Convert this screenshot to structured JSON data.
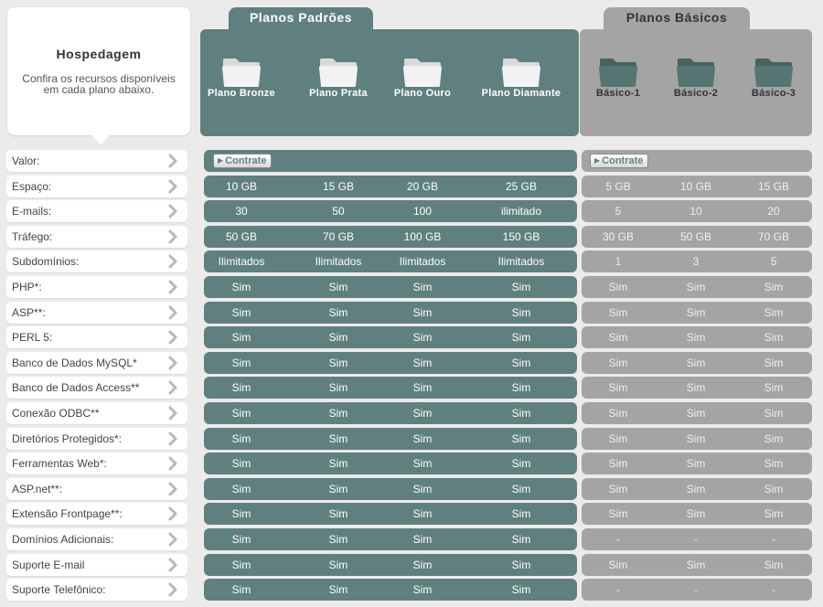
{
  "header": {
    "title": "Hospedagem",
    "description": "Confira os recursos disponíveis em cada plano abaixo."
  },
  "groups": {
    "padroes": "Planos Padrões",
    "basicos": "Planos Básicos"
  },
  "plans": {
    "padroes": [
      "Plano Bronze",
      "Plano Prata",
      "Plano Ouro",
      "Plano Diamante"
    ],
    "basicos": [
      "Básico-1",
      "Básico-2",
      "Básico-3"
    ]
  },
  "colors": {
    "padroes": "#5f807e",
    "basicos": "#a4a4a4",
    "background": "#ebebeb"
  },
  "contrate_label": "Contrate",
  "rows": [
    {
      "label": "Valor:",
      "padroes": null,
      "basicos": null
    },
    {
      "label": "Espaço:",
      "padroes": [
        "10 GB",
        "15 GB",
        "20 GB",
        "25 GB"
      ],
      "basicos": [
        "5 GB",
        "10 GB",
        "15 GB"
      ]
    },
    {
      "label": "E-mails:",
      "padroes": [
        "30",
        "50",
        "100",
        "ilimitado"
      ],
      "basicos": [
        "5",
        "10",
        "20"
      ]
    },
    {
      "label": "Tráfego:",
      "padroes": [
        "50 GB",
        "70 GB",
        "100 GB",
        "150 GB"
      ],
      "basicos": [
        "30 GB",
        "50 GB",
        "70 GB"
      ]
    },
    {
      "label": "Subdomínios:",
      "padroes": [
        "Ilimitados",
        "Ilimitados",
        "Ilimitados",
        "Ilimitados"
      ],
      "basicos": [
        "1",
        "3",
        "5"
      ]
    },
    {
      "label": "PHP*:",
      "padroes": [
        "Sim",
        "Sim",
        "Sim",
        "Sim"
      ],
      "basicos": [
        "Sim",
        "Sim",
        "Sim"
      ]
    },
    {
      "label": "ASP**:",
      "padroes": [
        "Sim",
        "Sim",
        "Sim",
        "Sim"
      ],
      "basicos": [
        "Sim",
        "Sim",
        "Sim"
      ]
    },
    {
      "label": "PERL 5:",
      "padroes": [
        "Sim",
        "Sim",
        "Sim",
        "Sim"
      ],
      "basicos": [
        "Sim",
        "Sim",
        "Sim"
      ]
    },
    {
      "label": "Banco de Dados MySQL*",
      "padroes": [
        "Sim",
        "Sim",
        "Sim",
        "Sim"
      ],
      "basicos": [
        "Sim",
        "Sim",
        "Sim"
      ]
    },
    {
      "label": "Banco de Dados Access**",
      "padroes": [
        "Sim",
        "Sim",
        "Sim",
        "Sim"
      ],
      "basicos": [
        "Sim",
        "Sim",
        "Sim"
      ]
    },
    {
      "label": "Conexão ODBC**",
      "padroes": [
        "Sim",
        "Sim",
        "Sim",
        "Sim"
      ],
      "basicos": [
        "Sim",
        "Sim",
        "Sim"
      ]
    },
    {
      "label": "Diretórios Protegidos*:",
      "padroes": [
        "Sim",
        "Sim",
        "Sim",
        "Sim"
      ],
      "basicos": [
        "Sim",
        "Sim",
        "Sim"
      ]
    },
    {
      "label": "Ferramentas Web*:",
      "padroes": [
        "Sim",
        "Sim",
        "Sim",
        "Sim"
      ],
      "basicos": [
        "Sim",
        "Sim",
        "Sim"
      ]
    },
    {
      "label": "ASP.net**:",
      "padroes": [
        "Sim",
        "Sim",
        "Sim",
        "Sim"
      ],
      "basicos": [
        "Sim",
        "Sim",
        "Sim"
      ]
    },
    {
      "label": "Extensão Frontpage**:",
      "padroes": [
        "Sim",
        "Sim",
        "Sim",
        "Sim"
      ],
      "basicos": [
        "Sim",
        "Sim",
        "Sim"
      ]
    },
    {
      "label": "Domínios Adicionais:",
      "padroes": [
        "Sim",
        "Sim",
        "Sim",
        "Sim"
      ],
      "basicos": [
        "-",
        "-",
        "-"
      ]
    },
    {
      "label": "Suporte E-mail",
      "padroes": [
        "Sim",
        "Sim",
        "Sim",
        "Sim"
      ],
      "basicos": [
        "Sim",
        "Sim",
        "Sim"
      ]
    },
    {
      "label": "Suporte Telefônico:",
      "padroes": [
        "Sim",
        "Sim",
        "Sim",
        "Sim"
      ],
      "basicos": [
        "-",
        "-",
        "-"
      ]
    }
  ]
}
